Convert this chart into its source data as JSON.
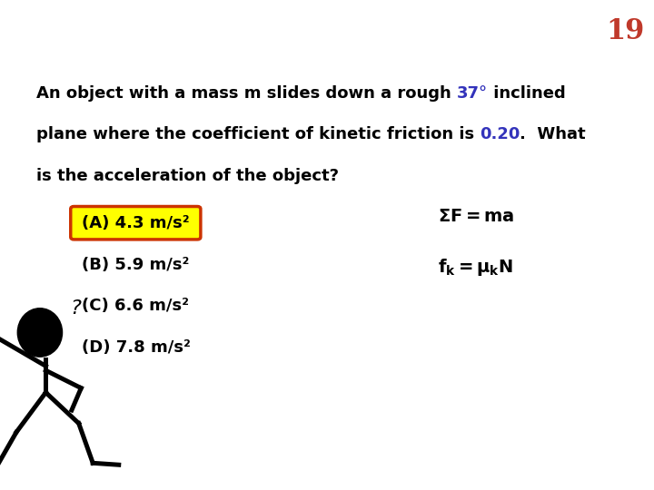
{
  "background_color": "#ffffff",
  "slide_number": "19",
  "slide_number_color": "#c0392b",
  "slide_number_fontsize": 22,
  "question_line1_parts": [
    {
      "text": "An object with a mass m slides down a rough ",
      "color": "#000000"
    },
    {
      "text": "37°",
      "color": "#3333bb"
    },
    {
      "text": " inclined",
      "color": "#000000"
    }
  ],
  "question_line2_parts": [
    {
      "text": "plane where the coefficient of kinetic friction is ",
      "color": "#000000"
    },
    {
      "text": "0.20",
      "color": "#3333bb"
    },
    {
      "text": ".  What",
      "color": "#000000"
    }
  ],
  "question_line3": "is the acceleration of the object?",
  "question_color": "#000000",
  "question_fontsize": 13,
  "choices": [
    {
      "label": "(A) 4.3 m/s²",
      "highlighted": true
    },
    {
      "label": "(B) 5.9 m/s²",
      "highlighted": false
    },
    {
      "label": "(C) 6.6 m/s²",
      "highlighted": false
    },
    {
      "label": "(D) 7.8 m/s²",
      "highlighted": false
    }
  ],
  "choice_color": "#000000",
  "choice_fontsize": 13,
  "highlight_bg": "#ffff00",
  "highlight_border": "#cc3300",
  "formula_color": "#000000",
  "formula_fontsize": 13
}
